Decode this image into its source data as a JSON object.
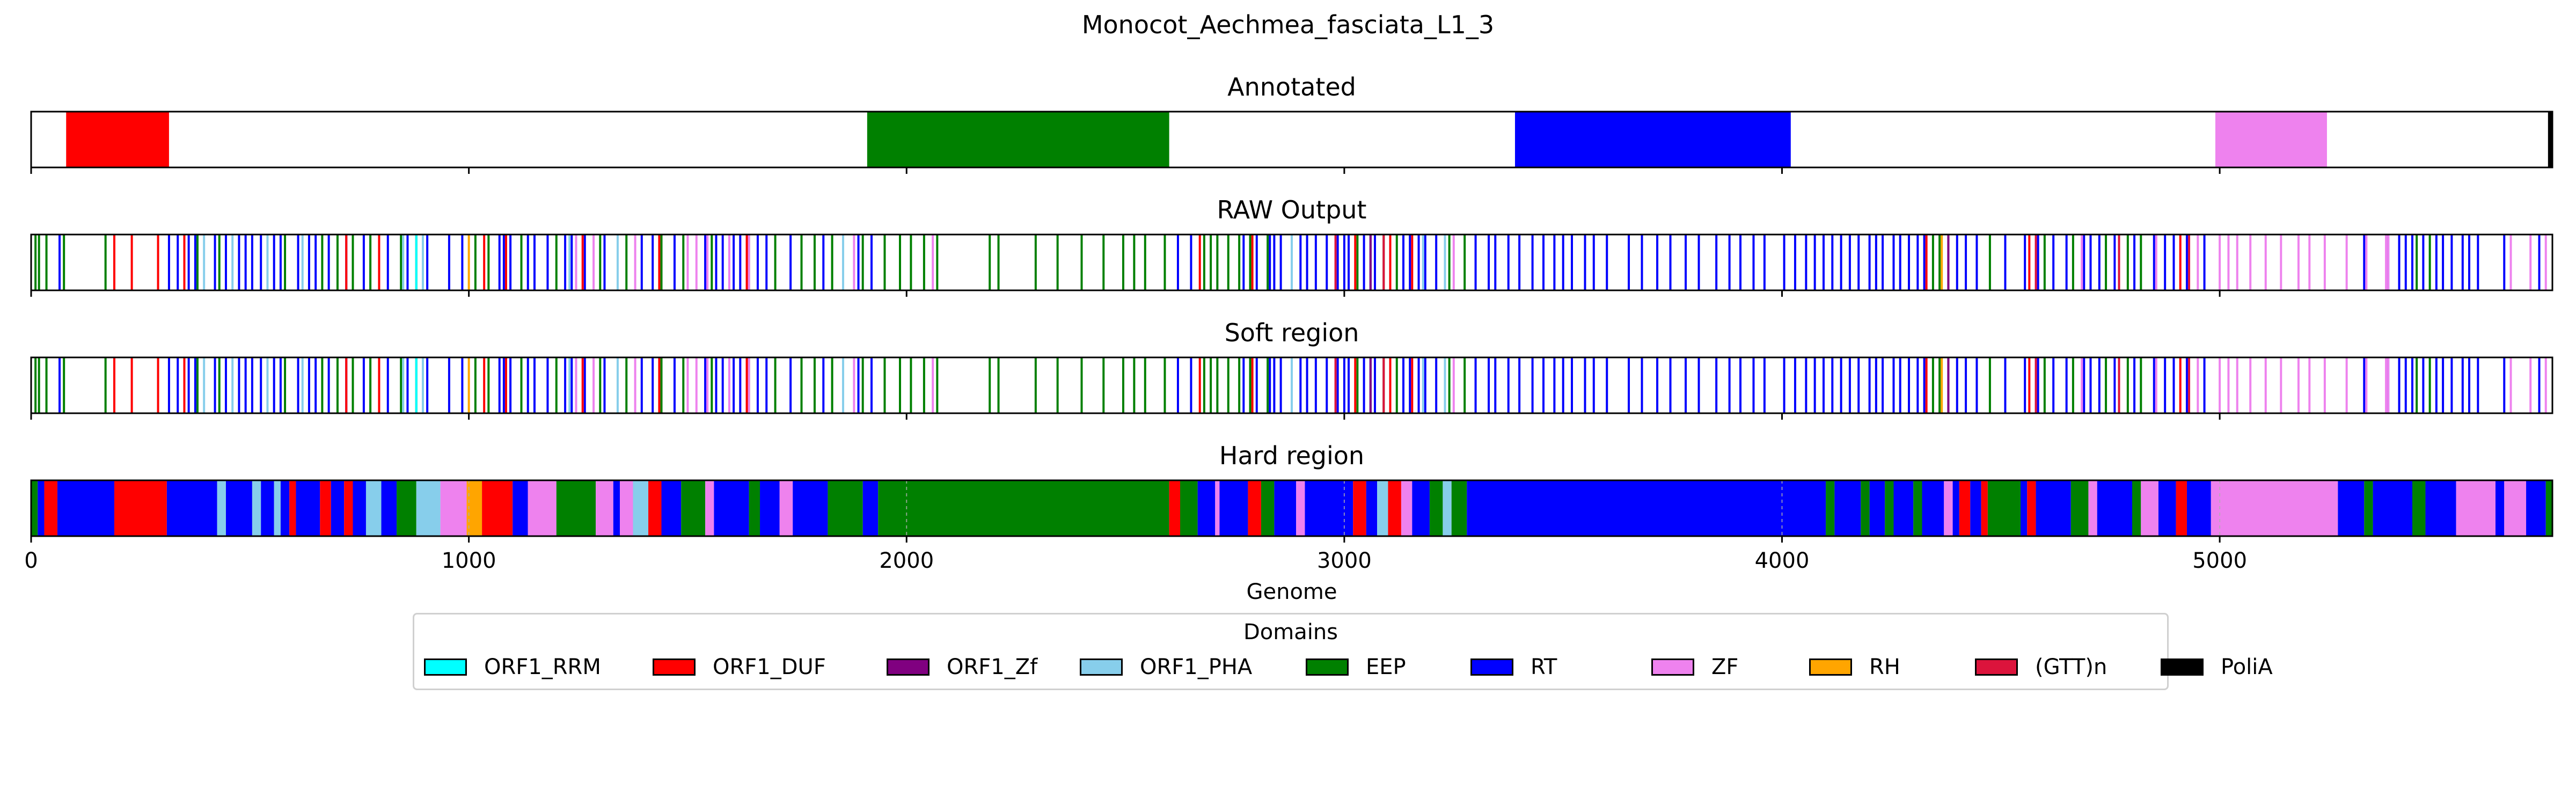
{
  "chart_data": {
    "type": "track",
    "title": "Monocot_Aechmea_fasciata_L1_3",
    "xlabel": "Genome",
    "xlim": [
      0,
      5760
    ],
    "xticks": [
      0,
      1000,
      2000,
      3000,
      4000,
      5000
    ],
    "colors": {
      "ORF1_RRM": "#00ffff",
      "ORF1_DUF": "#ff0000",
      "ORF1_Zf": "#800080",
      "ORF1_PHA": "#87ceeb",
      "EEP": "#008000",
      "RT": "#0000ff",
      "ZF": "#ee82ee",
      "RH": "#ffa500",
      "(GTT)n": "#dc143c",
      "PoliA": "#000000"
    },
    "legend": {
      "title": "Domains",
      "position": "below",
      "items": [
        "ORF1_RRM",
        "ORF1_DUF",
        "ORF1_Zf",
        "ORF1_PHA",
        "EEP",
        "RT",
        "ZF",
        "RH",
        "(GTT)n",
        "PoliA"
      ]
    },
    "panels": [
      {
        "title": "Annotated",
        "segments": [
          {
            "domain": "ORF1_DUF",
            "start": 80,
            "end": 315
          },
          {
            "domain": "EEP",
            "start": 1910,
            "end": 2600
          },
          {
            "domain": "RT",
            "start": 3390,
            "end": 4020
          },
          {
            "domain": "ZF",
            "start": 4990,
            "end": 5245
          },
          {
            "domain": "PoliA",
            "start": 5750,
            "end": 5760
          }
        ]
      },
      {
        "title": "RAW Output",
        "marks": [
          {
            "domain": "EEP",
            "pos": [
              10,
              18,
              35,
              75,
              170,
              380,
              430,
              580,
              665,
              700,
              735,
              775,
              845,
              880,
              1015,
              1045,
              1120,
              1200,
              1300,
              1360,
              1440,
              1490,
              1555,
              1640,
              1700,
              1760,
              1790,
              1830,
              1900,
              1950,
              1985,
              2010,
              2040,
              2070,
              2190,
              2210,
              2295,
              2345,
              2400,
              2450,
              2495,
              2520,
              2545,
              2590,
              2680,
              2695,
              2710,
              2735,
              2760,
              2785,
              2825,
              2880,
              3030,
              3090,
              3120,
              3240,
              3275,
              4345,
              4360,
              4475,
              4600,
              4665,
              4740,
              4790,
              4820,
              5450,
              5480
            ]
          },
          {
            "domain": "RT",
            "pos": [
              65,
              315,
              335,
              360,
              375,
              420,
              445,
              475,
              490,
              505,
              525,
              555,
              570,
              610,
              635,
              650,
              680,
              720,
              760,
              815,
              860,
              905,
              955,
              985,
              1070,
              1080,
              1095,
              1135,
              1150,
              1180,
              1220,
              1235,
              1265,
              1310,
              1395,
              1420,
              1470,
              1540,
              1565,
              1580,
              1605,
              1620,
              1660,
              1680,
              1735,
              1810,
              1890,
              1920,
              2620,
              2650,
              2770,
              2800,
              2830,
              2840,
              2855,
              2900,
              2915,
              2935,
              2960,
              2985,
              3000,
              3010,
              3045,
              3060,
              3070,
              3135,
              3150,
              3170,
              3185,
              3210,
              3300,
              3330,
              3345,
              3375,
              3400,
              3430,
              3455,
              3480,
              3500,
              3520,
              3550,
              3570,
              3600,
              3650,
              3680,
              3715,
              3745,
              3780,
              3810,
              3850,
              3880,
              3905,
              3935,
              3960,
              4005,
              4030,
              4055,
              4075,
              4095,
              4115,
              4135,
              4155,
              4175,
              4200,
              4215,
              4230,
              4255,
              4270,
              4290,
              4310,
              4325,
              4380,
              4400,
              4420,
              4445,
              4510,
              4555,
              4585,
              4620,
              4650,
              4690,
              4705,
              4725,
              4760,
              4805,
              4850,
              4875,
              4895,
              4925,
              4965,
              5330,
              5385,
              5410,
              5425,
              5440,
              5465,
              5495,
              5510,
              5530,
              5555,
              5570,
              5590,
              5650,
              5730
            ]
          },
          {
            "domain": "ORF1_DUF",
            "pos": [
              190,
              230,
              290,
              350,
              720,
              795,
              1035,
              1085,
              1260,
              1435,
              1635,
              2670,
              2790,
              3025,
              3105,
              3155,
              4330,
              4565,
              4910
            ]
          },
          {
            "domain": "ORF1_PHA",
            "pos": [
              395,
              460,
              540,
              620,
              850,
              895,
              1230,
              1340,
              1855,
              2880,
              3180,
              3230
            ]
          },
          {
            "domain": "ZF",
            "pos": [
              1245,
              1285,
              1380,
              1500,
              1520,
              1545,
              1595,
              1640,
              1880,
              2060,
              3250,
              4685,
              4855,
              4950,
              5000,
              5020,
              5040,
              5070,
              5105,
              5140,
              5180,
              5205,
              5240,
              5290,
              5335,
              5380,
              5385,
              5665,
              5710,
              5745
            ]
          },
          {
            "domain": "(GTT)n",
            "pos": [
              2980,
              3090,
              4580,
              4770,
              4930
            ]
          },
          {
            "domain": "ORF1_Zf",
            "pos": [
              3060,
              4380
            ]
          },
          {
            "domain": "RH",
            "pos": [
              1000,
              4365
            ]
          },
          {
            "domain": "ORF1_RRM",
            "pos": [
              880
            ]
          }
        ]
      },
      {
        "title": "Soft region",
        "same_as": "RAW Output"
      },
      {
        "title": "Hard region",
        "segments": [
          {
            "domain": "EEP",
            "start": 0,
            "end": 15
          },
          {
            "domain": "RT",
            "start": 15,
            "end": 30
          },
          {
            "domain": "ORF1_DUF",
            "start": 30,
            "end": 60
          },
          {
            "domain": "RT",
            "start": 60,
            "end": 190
          },
          {
            "domain": "ORF1_DUF",
            "start": 190,
            "end": 310
          },
          {
            "domain": "RT",
            "start": 310,
            "end": 425
          },
          {
            "domain": "ORF1_PHA",
            "start": 425,
            "end": 445
          },
          {
            "domain": "RT",
            "start": 445,
            "end": 505
          },
          {
            "domain": "ORF1_PHA",
            "start": 505,
            "end": 525
          },
          {
            "domain": "RT",
            "start": 525,
            "end": 555
          },
          {
            "domain": "ORF1_PHA",
            "start": 555,
            "end": 570
          },
          {
            "domain": "RT",
            "start": 570,
            "end": 590
          },
          {
            "domain": "ORF1_DUF",
            "start": 590,
            "end": 605
          },
          {
            "domain": "RT",
            "start": 605,
            "end": 660
          },
          {
            "domain": "ORF1_DUF",
            "start": 660,
            "end": 685
          },
          {
            "domain": "RT",
            "start": 685,
            "end": 715
          },
          {
            "domain": "ORF1_DUF",
            "start": 715,
            "end": 735
          },
          {
            "domain": "RT",
            "start": 735,
            "end": 765
          },
          {
            "domain": "ORF1_PHA",
            "start": 765,
            "end": 800
          },
          {
            "domain": "RT",
            "start": 800,
            "end": 835
          },
          {
            "domain": "EEP",
            "start": 835,
            "end": 880
          },
          {
            "domain": "ORF1_PHA",
            "start": 880,
            "end": 935
          },
          {
            "domain": "ZF",
            "start": 935,
            "end": 995
          },
          {
            "domain": "RH",
            "start": 995,
            "end": 1030
          },
          {
            "domain": "ORF1_DUF",
            "start": 1030,
            "end": 1100
          },
          {
            "domain": "RT",
            "start": 1100,
            "end": 1135
          },
          {
            "domain": "ZF",
            "start": 1135,
            "end": 1200
          },
          {
            "domain": "EEP",
            "start": 1200,
            "end": 1290
          },
          {
            "domain": "ZF",
            "start": 1290,
            "end": 1330
          },
          {
            "domain": "RT",
            "start": 1330,
            "end": 1345
          },
          {
            "domain": "ZF",
            "start": 1345,
            "end": 1375
          },
          {
            "domain": "ORF1_PHA",
            "start": 1375,
            "end": 1410
          },
          {
            "domain": "ORF1_DUF",
            "start": 1410,
            "end": 1440
          },
          {
            "domain": "RT",
            "start": 1440,
            "end": 1485
          },
          {
            "domain": "EEP",
            "start": 1485,
            "end": 1540
          },
          {
            "domain": "ZF",
            "start": 1540,
            "end": 1560
          },
          {
            "domain": "RT",
            "start": 1560,
            "end": 1640
          },
          {
            "domain": "EEP",
            "start": 1640,
            "end": 1665
          },
          {
            "domain": "RT",
            "start": 1665,
            "end": 1710
          },
          {
            "domain": "ZF",
            "start": 1710,
            "end": 1740
          },
          {
            "domain": "RT",
            "start": 1740,
            "end": 1820
          },
          {
            "domain": "EEP",
            "start": 1820,
            "end": 1900
          },
          {
            "domain": "RT",
            "start": 1900,
            "end": 1935
          },
          {
            "domain": "EEP",
            "start": 1935,
            "end": 2600
          },
          {
            "domain": "ORF1_DUF",
            "start": 2600,
            "end": 2625
          },
          {
            "domain": "EEP",
            "start": 2625,
            "end": 2665
          },
          {
            "domain": "RT",
            "start": 2665,
            "end": 2705
          },
          {
            "domain": "ZF",
            "start": 2705,
            "end": 2715
          },
          {
            "domain": "RT",
            "start": 2715,
            "end": 2780
          },
          {
            "domain": "ORF1_DUF",
            "start": 2780,
            "end": 2810
          },
          {
            "domain": "EEP",
            "start": 2810,
            "end": 2840
          },
          {
            "domain": "RT",
            "start": 2840,
            "end": 2890
          },
          {
            "domain": "ZF",
            "start": 2890,
            "end": 2910
          },
          {
            "domain": "RT",
            "start": 2910,
            "end": 3020
          },
          {
            "domain": "ORF1_DUF",
            "start": 3020,
            "end": 3050
          },
          {
            "domain": "RT",
            "start": 3050,
            "end": 3075
          },
          {
            "domain": "ORF1_PHA",
            "start": 3075,
            "end": 3100
          },
          {
            "domain": "ORF1_DUF",
            "start": 3100,
            "end": 3130
          },
          {
            "domain": "ZF",
            "start": 3130,
            "end": 3155
          },
          {
            "domain": "RT",
            "start": 3155,
            "end": 3195
          },
          {
            "domain": "EEP",
            "start": 3195,
            "end": 3225
          },
          {
            "domain": "ORF1_PHA",
            "start": 3225,
            "end": 3245
          },
          {
            "domain": "EEP",
            "start": 3245,
            "end": 3280
          },
          {
            "domain": "RT",
            "start": 3280,
            "end": 4100
          },
          {
            "domain": "EEP",
            "start": 4100,
            "end": 4120
          },
          {
            "domain": "RT",
            "start": 4120,
            "end": 4180
          },
          {
            "domain": "EEP",
            "start": 4180,
            "end": 4200
          },
          {
            "domain": "RT",
            "start": 4200,
            "end": 4235
          },
          {
            "domain": "EEP",
            "start": 4235,
            "end": 4255
          },
          {
            "domain": "RT",
            "start": 4255,
            "end": 4300
          },
          {
            "domain": "EEP",
            "start": 4300,
            "end": 4320
          },
          {
            "domain": "RT",
            "start": 4320,
            "end": 4370
          },
          {
            "domain": "ZF",
            "start": 4370,
            "end": 4390
          },
          {
            "domain": "RT",
            "start": 4390,
            "end": 4405
          },
          {
            "domain": "ORF1_DUF",
            "start": 4405,
            "end": 4430
          },
          {
            "domain": "RT",
            "start": 4430,
            "end": 4455
          },
          {
            "domain": "ORF1_DUF",
            "start": 4455,
            "end": 4470
          },
          {
            "domain": "EEP",
            "start": 4470,
            "end": 4545
          },
          {
            "domain": "RT",
            "start": 4545,
            "end": 4560
          },
          {
            "domain": "ORF1_DUF",
            "start": 4560,
            "end": 4580
          },
          {
            "domain": "RT",
            "start": 4580,
            "end": 4660
          },
          {
            "domain": "EEP",
            "start": 4660,
            "end": 4700
          },
          {
            "domain": "ZF",
            "start": 4700,
            "end": 4720
          },
          {
            "domain": "RT",
            "start": 4720,
            "end": 4800
          },
          {
            "domain": "EEP",
            "start": 4800,
            "end": 4820
          },
          {
            "domain": "ZF",
            "start": 4820,
            "end": 4860
          },
          {
            "domain": "RT",
            "start": 4860,
            "end": 4900
          },
          {
            "domain": "ORF1_DUF",
            "start": 4900,
            "end": 4925
          },
          {
            "domain": "RT",
            "start": 4925,
            "end": 4980
          },
          {
            "domain": "ZF",
            "start": 4980,
            "end": 5270
          },
          {
            "domain": "RT",
            "start": 5270,
            "end": 5330
          },
          {
            "domain": "EEP",
            "start": 5330,
            "end": 5350
          },
          {
            "domain": "RT",
            "start": 5350,
            "end": 5440
          },
          {
            "domain": "EEP",
            "start": 5440,
            "end": 5470
          },
          {
            "domain": "RT",
            "start": 5470,
            "end": 5540
          },
          {
            "domain": "ZF",
            "start": 5540,
            "end": 5630
          },
          {
            "domain": "RT",
            "start": 5630,
            "end": 5650
          },
          {
            "domain": "ZF",
            "start": 5650,
            "end": 5700
          },
          {
            "domain": "RT",
            "start": 5700,
            "end": 5745
          },
          {
            "domain": "EEP",
            "start": 5745,
            "end": 5760
          }
        ]
      }
    ]
  }
}
